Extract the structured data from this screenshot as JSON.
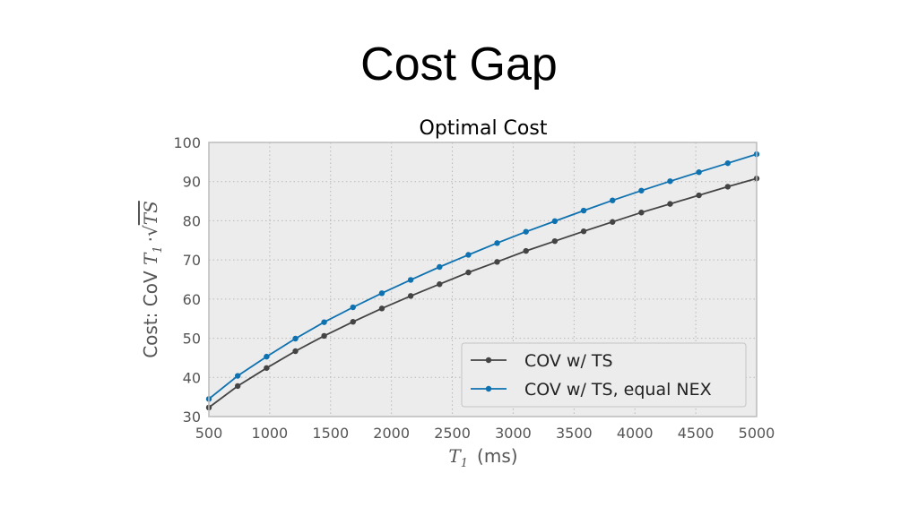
{
  "slide": {
    "title": "Cost Gap"
  },
  "chart_data": {
    "type": "line",
    "title": "Optimal Cost",
    "xlabel_symbol": "T",
    "xlabel_sub": "1",
    "xlabel_unit": "(ms)",
    "ylabel_prefix": "Cost: CoV ",
    "ylabel_symbol": "T",
    "ylabel_sub": "1",
    "ylabel_suffix": "·√",
    "ylabel_radicand": "TS",
    "xlim": [
      500,
      5000
    ],
    "ylim": [
      30,
      100
    ],
    "xticks": [
      500,
      1000,
      1500,
      2000,
      2500,
      3000,
      3500,
      4000,
      4500,
      5000
    ],
    "yticks": [
      30,
      40,
      50,
      60,
      70,
      80,
      90,
      100
    ],
    "grid": true,
    "legend_position": "lower-right",
    "background": "#ececec",
    "series": [
      {
        "name": "COV w/ TS",
        "color": "#444444",
        "x": [
          500,
          737,
          974,
          1211,
          1447,
          1684,
          1921,
          2158,
          2395,
          2632,
          2868,
          3105,
          3342,
          3579,
          3816,
          4053,
          4289,
          4526,
          4763,
          5000
        ],
        "y": [
          32.3,
          37.8,
          42.4,
          46.7,
          50.6,
          54.2,
          57.6,
          60.8,
          63.8,
          66.8,
          69.5,
          72.3,
          74.8,
          77.3,
          79.7,
          82.1,
          84.3,
          86.5,
          88.7,
          90.8
        ]
      },
      {
        "name": "COV w/ TS, equal NEX",
        "color": "#0f72b0",
        "x": [
          500,
          737,
          974,
          1211,
          1447,
          1684,
          1921,
          2158,
          2395,
          2632,
          2868,
          3105,
          3342,
          3579,
          3816,
          4053,
          4289,
          4526,
          4763,
          5000
        ],
        "y": [
          34.5,
          40.4,
          45.3,
          49.9,
          54.1,
          57.9,
          61.5,
          64.9,
          68.2,
          71.3,
          74.3,
          77.2,
          79.9,
          82.6,
          85.2,
          87.7,
          90.1,
          92.4,
          94.7,
          97.0
        ]
      }
    ]
  }
}
